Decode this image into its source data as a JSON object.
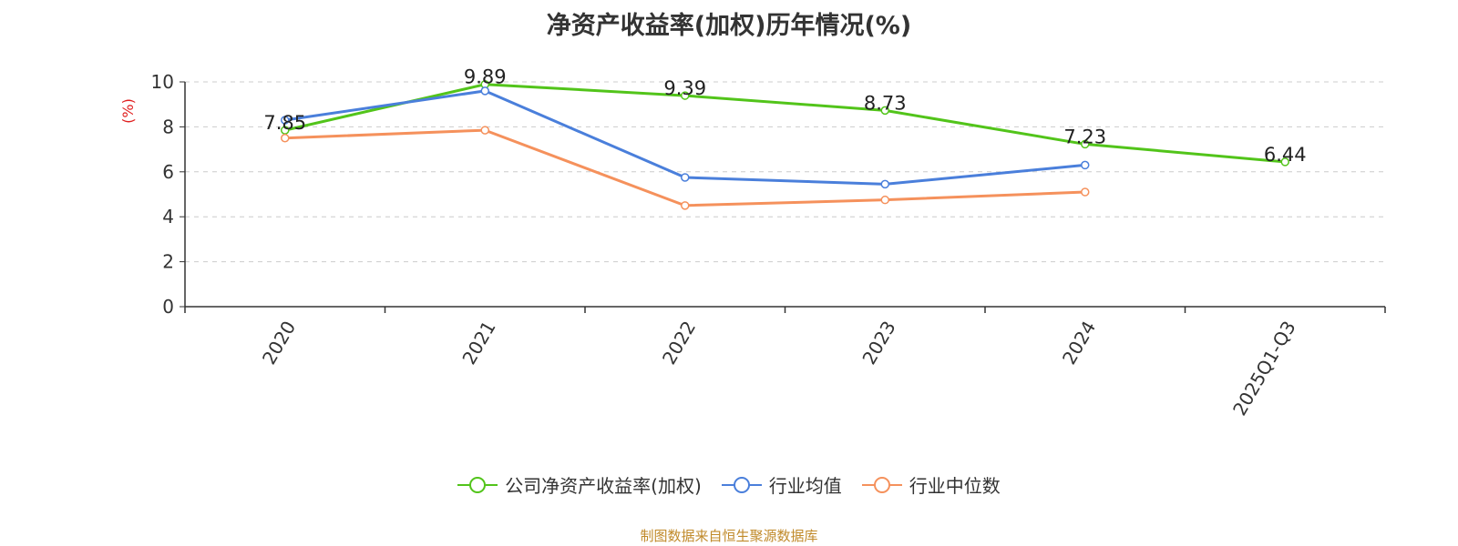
{
  "title": "净资产收益率(加权)历年情况(%)",
  "source": "制图数据来自恒生聚源数据库",
  "chart_data": {
    "type": "line",
    "title": "净资产收益率(加权)历年情况(%)",
    "ylabel": "(%)",
    "xlabel": "",
    "ylim": [
      0,
      10
    ],
    "yticks": [
      0,
      2,
      4,
      6,
      8,
      10
    ],
    "categories": [
      "2020",
      "2021",
      "2022",
      "2023",
      "2024",
      "2025Q1-Q3"
    ],
    "grid": true,
    "legend_position": "bottom-center",
    "series": [
      {
        "name": "公司净资产收益率(加权)",
        "color": "#52c41a",
        "labels": true,
        "values": [
          7.85,
          9.89,
          9.39,
          8.73,
          7.23,
          6.44
        ]
      },
      {
        "name": "行业均值",
        "color": "#4a7fdb",
        "labels": false,
        "values": [
          8.3,
          9.6,
          5.75,
          5.45,
          6.3,
          null
        ]
      },
      {
        "name": "行业中位数",
        "color": "#f5915c",
        "labels": false,
        "values": [
          7.5,
          7.85,
          4.5,
          4.75,
          5.1,
          null
        ]
      }
    ]
  }
}
